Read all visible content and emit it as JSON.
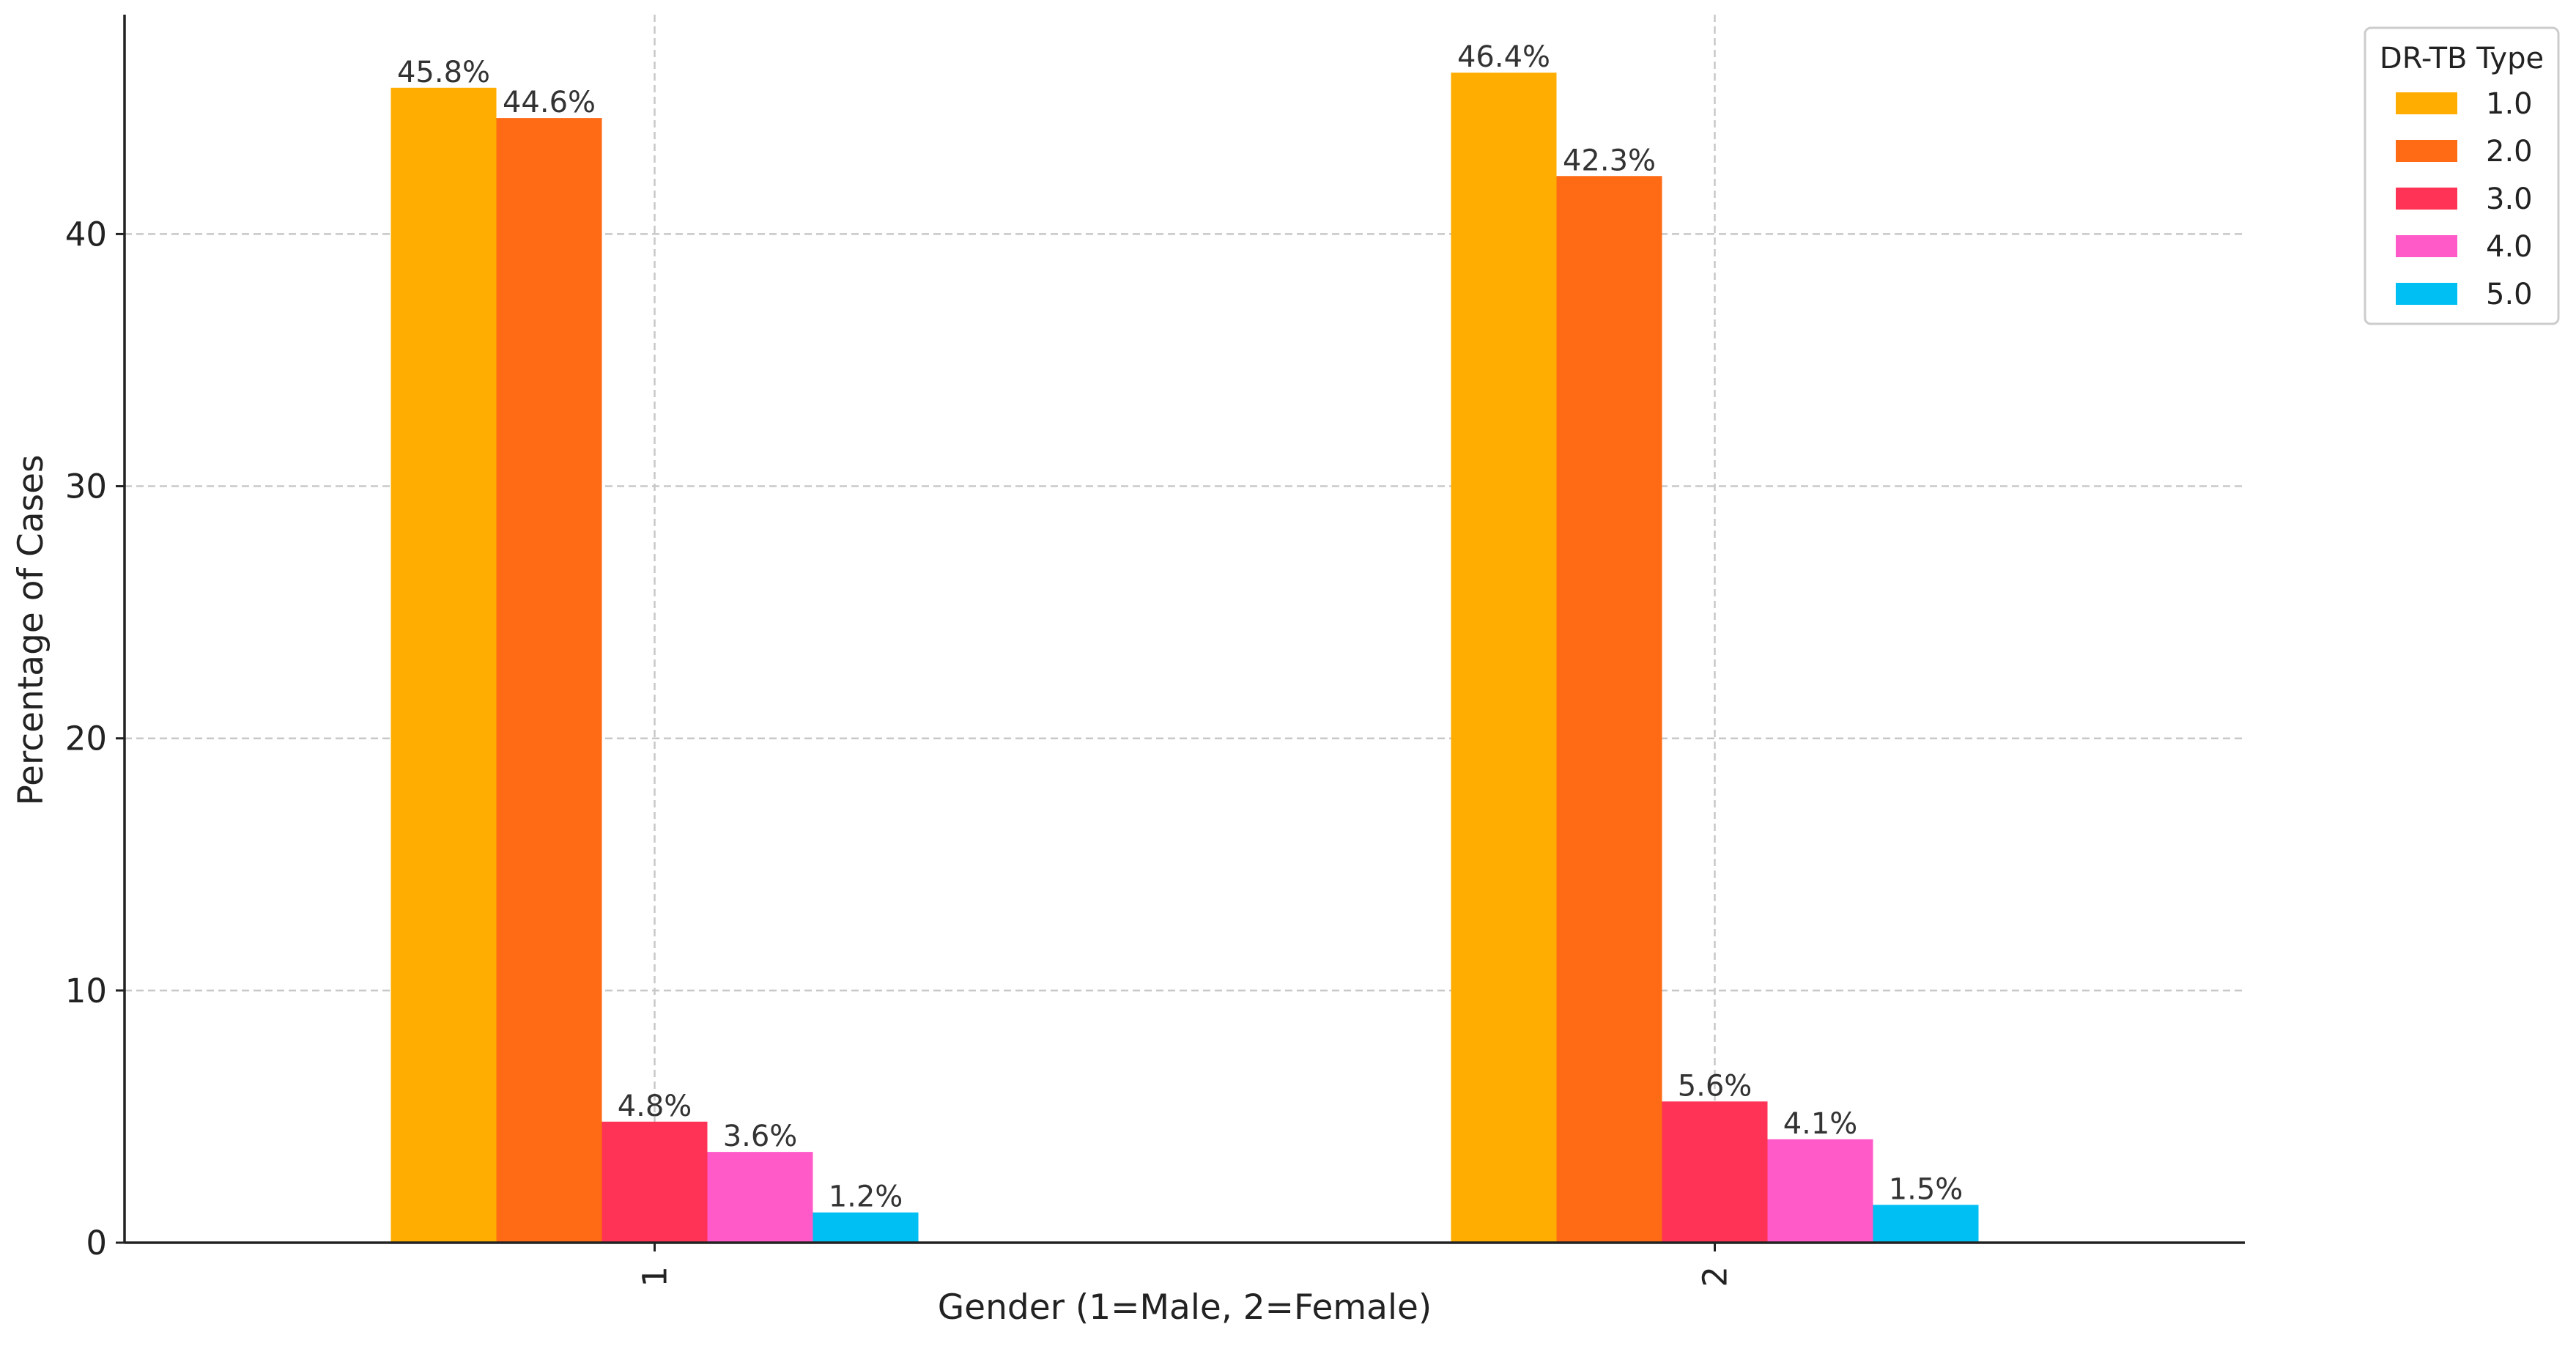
{
  "chart_data": {
    "type": "bar",
    "title": "",
    "xlabel": "Gender (1=Male, 2=Female)",
    "ylabel": "Percentage of Cases",
    "categories": [
      "1",
      "2"
    ],
    "ylim": [
      0,
      48.7
    ],
    "yticks": [
      "0",
      "10",
      "20",
      "30",
      "40"
    ],
    "grid": true,
    "legend": {
      "title": "DR-TB Type",
      "placement": "top-right-outside"
    },
    "series": [
      {
        "name": "1.0",
        "color": "#FFAD00",
        "values": [
          45.8,
          46.4
        ],
        "labels": [
          "45.8%",
          "46.4%"
        ]
      },
      {
        "name": "2.0",
        "color": "#FF6A14",
        "values": [
          44.6,
          42.3
        ],
        "labels": [
          "44.6%",
          "42.3%"
        ]
      },
      {
        "name": "3.0",
        "color": "#FF3355",
        "values": [
          4.8,
          5.6
        ],
        "labels": [
          "4.8%",
          "5.6%"
        ]
      },
      {
        "name": "4.0",
        "color": "#FF5AC8",
        "values": [
          3.6,
          4.1
        ],
        "labels": [
          "3.6%",
          "4.1%"
        ]
      },
      {
        "name": "5.0",
        "color": "#00BFF3",
        "values": [
          1.2,
          1.5
        ],
        "labels": [
          "1.2%",
          "1.5%"
        ]
      }
    ]
  }
}
